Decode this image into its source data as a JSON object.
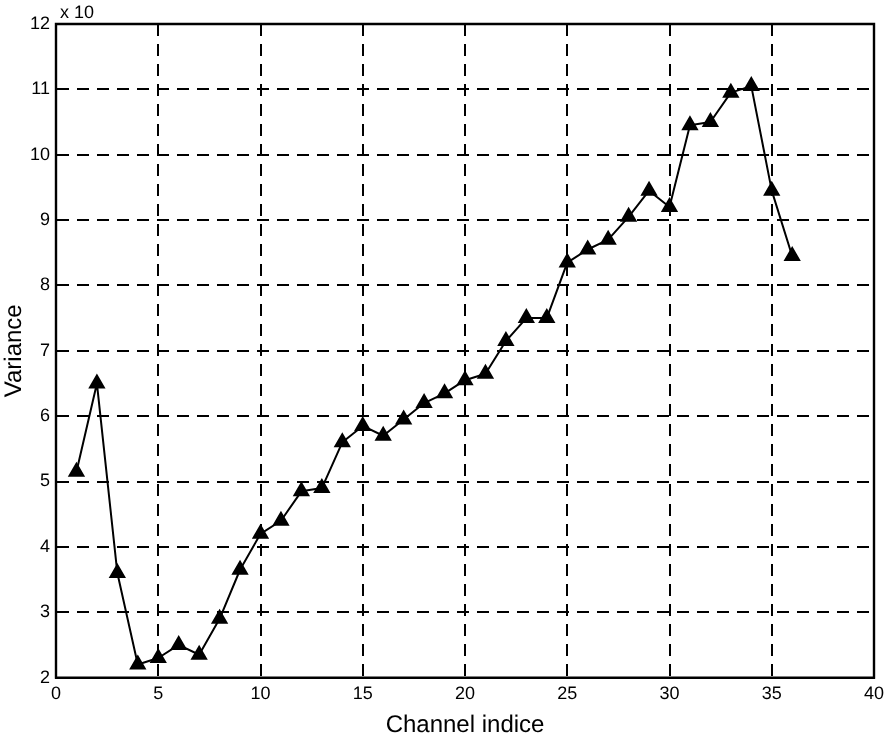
{
  "chart_data": {
    "type": "line",
    "xlabel": "Channel indice",
    "ylabel": "Variance",
    "annotations": [
      "x 10"
    ],
    "x": [
      1,
      2,
      3,
      4,
      5,
      6,
      7,
      8,
      9,
      10,
      11,
      12,
      13,
      14,
      15,
      16,
      17,
      18,
      19,
      20,
      21,
      22,
      23,
      24,
      25,
      26,
      27,
      28,
      29,
      30,
      31,
      32,
      33,
      34,
      35,
      36
    ],
    "series": [
      {
        "color": "#000000",
        "values": [
          5.15,
          6.5,
          3.6,
          2.2,
          2.3,
          2.5,
          2.35,
          2.9,
          3.65,
          4.2,
          4.4,
          4.85,
          4.9,
          5.6,
          5.85,
          5.7,
          5.95,
          6.2,
          6.35,
          6.55,
          6.65,
          7.15,
          7.5,
          7.5,
          8.35,
          8.55,
          8.7,
          9.05,
          9.45,
          9.2,
          10.45,
          10.5,
          10.95,
          11.05,
          9.45,
          8.45
        ]
      }
    ],
    "xlim": [
      0,
      40
    ],
    "xticks": [
      0,
      5,
      10,
      15,
      20,
      25,
      30,
      35,
      40
    ],
    "ylim": [
      2,
      12
    ],
    "yticks": [
      2,
      3,
      4,
      5,
      6,
      7,
      8,
      9,
      10,
      11,
      12
    ],
    "grid": true,
    "legend": false,
    "marker": "triangle",
    "line_style": "solid"
  }
}
